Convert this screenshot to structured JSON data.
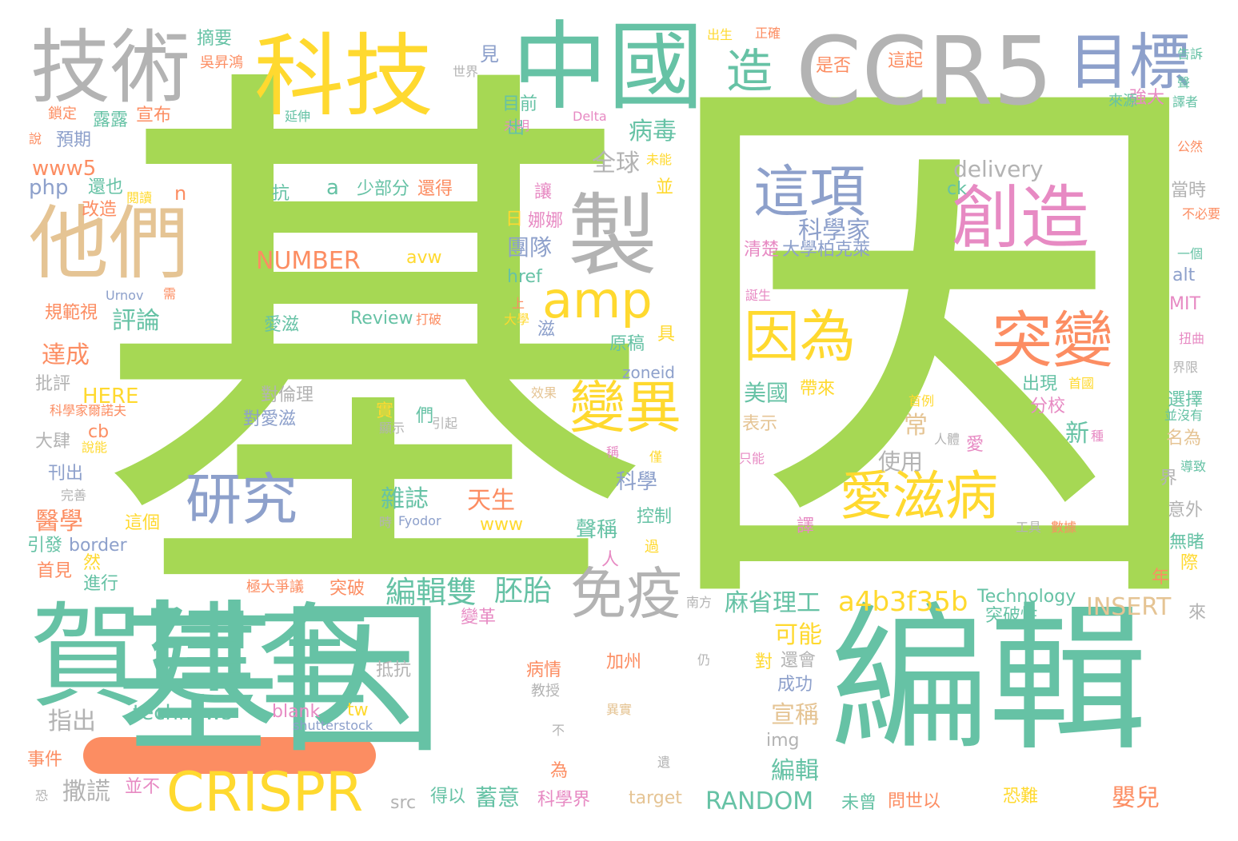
{
  "cloud": {
    "palette": {
      "green": "#a6d854",
      "teal": "#66c2a5",
      "gray": "#b3b3b3",
      "yellow": "#ffd92f",
      "orange": "#fc8d62",
      "blue": "#8da0cb",
      "pink": "#e78ac3",
      "tan": "#e5c494"
    },
    "words": [
      {
        "text": "基因"
      },
      {
        "text": "基因"
      },
      {
        "text": "編輯"
      },
      {
        "text": "賀建奎"
      },
      {
        "text": "CCR5"
      },
      {
        "text": "中國"
      },
      {
        "text": "科技"
      },
      {
        "text": "技術"
      },
      {
        "text": "他們"
      },
      {
        "text": "目標"
      },
      {
        "text": "製"
      },
      {
        "text": "創造"
      },
      {
        "text": "突變"
      },
      {
        "text": "愛滋病"
      },
      {
        "text": "因為"
      },
      {
        "text": "變異"
      },
      {
        "text": "這項"
      },
      {
        "text": "研究"
      },
      {
        "text": "免疫"
      },
      {
        "text": "CRISPR"
      },
      {
        "text": "amp"
      },
      {
        "text": "造"
      },
      {
        "text": "編輯雙"
      },
      {
        "text": "胚胎"
      },
      {
        "text": "a4b3f35b"
      },
      {
        "text": "NUMBER"
      },
      {
        "text": "RANDOM"
      },
      {
        "text": "INSERT"
      },
      {
        "text": "delivery"
      },
      {
        "text": "www5"
      },
      {
        "text": "php"
      },
      {
        "text": "HERE"
      },
      {
        "text": "technews"
      },
      {
        "text": "全球"
      },
      {
        "text": "病毒"
      },
      {
        "text": "科學家"
      },
      {
        "text": "大學柏克萊"
      },
      {
        "text": "清楚"
      },
      {
        "text": "美國"
      },
      {
        "text": "帶來"
      },
      {
        "text": "麻省理工"
      },
      {
        "text": "可能"
      },
      {
        "text": "宣稱"
      },
      {
        "text": "編輯"
      },
      {
        "text": "嬰兒"
      },
      {
        "text": "撒謊"
      },
      {
        "text": "蓄意"
      },
      {
        "text": "科學界"
      },
      {
        "text": "評論"
      },
      {
        "text": "達成"
      },
      {
        "text": "醫學"
      },
      {
        "text": "雜誌"
      },
      {
        "text": "天生"
      },
      {
        "text": "聲稱"
      },
      {
        "text": "科學"
      },
      {
        "text": "使用"
      },
      {
        "text": "團隊"
      },
      {
        "text": "少部分"
      },
      {
        "text": "a"
      },
      {
        "text": "n"
      },
      {
        "text": "抗"
      },
      {
        "text": "還也"
      },
      {
        "text": "改造"
      },
      {
        "text": "預期"
      },
      {
        "text": "露露"
      },
      {
        "text": "宣布"
      },
      {
        "text": "鎖定"
      },
      {
        "text": "摘要"
      },
      {
        "text": "吳昇鴻"
      },
      {
        "text": "見"
      },
      {
        "text": "目前"
      },
      {
        "text": "未明"
      },
      {
        "text": "延伸"
      },
      {
        "text": "世界"
      },
      {
        "text": "是否"
      },
      {
        "text": "這起"
      },
      {
        "text": "出生"
      },
      {
        "text": "正確"
      },
      {
        "text": "強大"
      },
      {
        "text": "來源"
      },
      {
        "text": "譯者"
      },
      {
        "text": "告訴"
      },
      {
        "text": "聲"
      },
      {
        "text": "公然"
      },
      {
        "text": "當時"
      },
      {
        "text": "不必要"
      },
      {
        "text": "一個"
      },
      {
        "text": "alt"
      },
      {
        "text": "MIT"
      },
      {
        "text": "扭曲"
      },
      {
        "text": "界限"
      },
      {
        "text": "選擇"
      },
      {
        "text": "並沒有"
      },
      {
        "text": "名為"
      },
      {
        "text": "導致"
      },
      {
        "text": "界"
      },
      {
        "text": "意外"
      },
      {
        "text": "無睹"
      },
      {
        "text": "際"
      },
      {
        "text": "年"
      },
      {
        "text": "來"
      },
      {
        "text": "Technology"
      },
      {
        "text": "突破性"
      },
      {
        "text": "恐難"
      },
      {
        "text": "問世以"
      },
      {
        "text": "未曾"
      },
      {
        "text": "還會"
      },
      {
        "text": "成功"
      },
      {
        "text": "對"
      },
      {
        "text": "img"
      },
      {
        "text": "target"
      },
      {
        "text": "src"
      },
      {
        "text": "得以"
      },
      {
        "text": "並不"
      },
      {
        "text": "事件"
      },
      {
        "text": "恐"
      },
      {
        "text": "指出"
      },
      {
        "text": "tw"
      },
      {
        "text": "blank"
      },
      {
        "text": "shutterstock"
      },
      {
        "text": "加州"
      },
      {
        "text": "仍"
      },
      {
        "text": "病情"
      },
      {
        "text": "教授"
      },
      {
        "text": "不"
      },
      {
        "text": "為"
      },
      {
        "text": "遺"
      },
      {
        "text": "抵抗"
      },
      {
        "text": "極大爭議"
      },
      {
        "text": "突破"
      },
      {
        "text": "變革"
      },
      {
        "text": "進行"
      },
      {
        "text": "然"
      },
      {
        "text": "首見"
      },
      {
        "text": "引發"
      },
      {
        "text": "border"
      },
      {
        "text": "這個"
      },
      {
        "text": "刊出"
      },
      {
        "text": "完善"
      },
      {
        "text": "大肆"
      },
      {
        "text": "說能"
      },
      {
        "text": "批評"
      },
      {
        "text": "科學家爾諾夫"
      },
      {
        "text": "cb"
      },
      {
        "text": "規範視"
      },
      {
        "text": "需"
      },
      {
        "text": "Urnov"
      },
      {
        "text": "上"
      },
      {
        "text": "大學"
      },
      {
        "text": "滋"
      },
      {
        "text": "打破"
      },
      {
        "text": "Review"
      },
      {
        "text": "愛滋"
      },
      {
        "text": "對倫理"
      },
      {
        "text": "對愛滋"
      },
      {
        "text": "實"
      },
      {
        "text": "們"
      },
      {
        "text": "顯示"
      },
      {
        "text": "引起"
      },
      {
        "text": "效果"
      },
      {
        "text": "www"
      },
      {
        "text": "時"
      },
      {
        "text": "Fyodor"
      },
      {
        "text": "控制"
      },
      {
        "text": "人"
      },
      {
        "text": "過"
      },
      {
        "text": "原稿"
      },
      {
        "text": "具"
      },
      {
        "text": "zoneid"
      },
      {
        "text": "出現"
      },
      {
        "text": "分校"
      },
      {
        "text": "表示"
      },
      {
        "text": "首例"
      },
      {
        "text": "常"
      },
      {
        "text": "新"
      },
      {
        "text": "種"
      },
      {
        "text": "人體"
      },
      {
        "text": "愛"
      },
      {
        "text": "工具"
      },
      {
        "text": "數據"
      },
      {
        "text": "只能"
      },
      {
        "text": "稱"
      },
      {
        "text": "僅"
      },
      {
        "text": "譯"
      },
      {
        "text": "首國"
      },
      {
        "text": "誕生"
      },
      {
        "text": "娜娜"
      },
      {
        "text": "日"
      },
      {
        "text": "讓"
      },
      {
        "text": "並"
      },
      {
        "text": "未能"
      },
      {
        "text": "Delta"
      },
      {
        "text": "還得"
      },
      {
        "text": "閱讀"
      },
      {
        "text": "出"
      },
      {
        "text": "說"
      },
      {
        "text": "href"
      },
      {
        "text": "ck"
      },
      {
        "text": "avw"
      },
      {
        "text": "南方"
      },
      {
        "text": "異實"
      }
    ]
  }
}
